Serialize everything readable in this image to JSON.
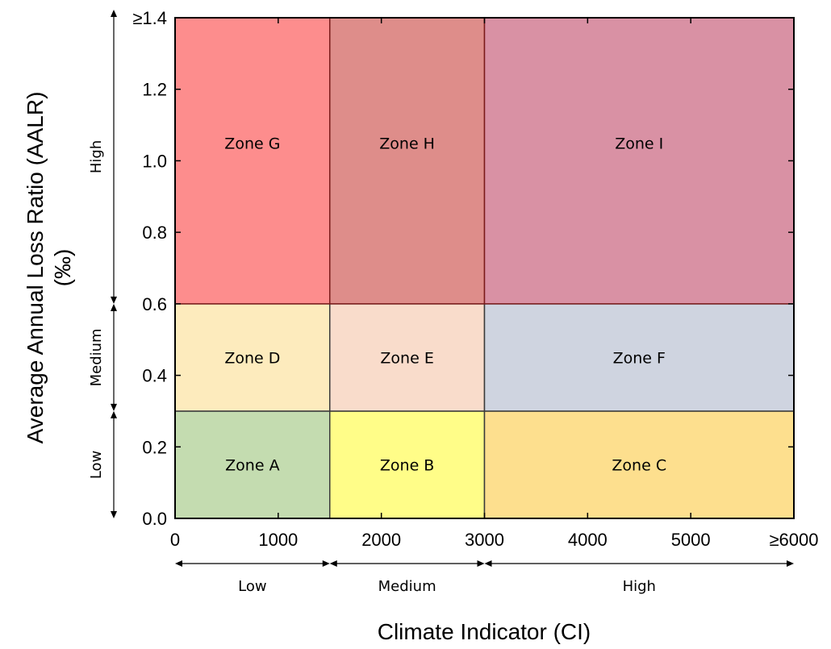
{
  "chart_data": {
    "type": "heatmap",
    "xlabel": "Climate Indicator (CI)",
    "ylabel_line1": "Average Annual Loss Ratio (AALR)",
    "ylabel_line2": "(‰)",
    "xlim": [
      0,
      6000
    ],
    "ylim": [
      0,
      1.4
    ],
    "x_ticks": [
      {
        "value": 0,
        "label": "0"
      },
      {
        "value": 1000,
        "label": "1000"
      },
      {
        "value": 2000,
        "label": "2000"
      },
      {
        "value": 3000,
        "label": "3000"
      },
      {
        "value": 4000,
        "label": "4000"
      },
      {
        "value": 5000,
        "label": "5000"
      },
      {
        "value": 6000,
        "label": "≥6000"
      }
    ],
    "y_ticks": [
      {
        "value": 0.0,
        "label": "0.0"
      },
      {
        "value": 0.2,
        "label": "0.2"
      },
      {
        "value": 0.4,
        "label": "0.4"
      },
      {
        "value": 0.6,
        "label": "0.6"
      },
      {
        "value": 0.8,
        "label": "0.8"
      },
      {
        "value": 1.0,
        "label": "1.0"
      },
      {
        "value": 1.2,
        "label": "1.2"
      },
      {
        "value": 1.4,
        "label": "≥1.4"
      }
    ],
    "x_bands": [
      {
        "label": "Low",
        "from": 0,
        "to": 1500
      },
      {
        "label": "Medium",
        "from": 1500,
        "to": 3000
      },
      {
        "label": "High",
        "from": 3000,
        "to": 6000
      }
    ],
    "y_bands": [
      {
        "label": "Low",
        "from": 0,
        "to": 0.3
      },
      {
        "label": "Medium",
        "from": 0.3,
        "to": 0.6
      },
      {
        "label": "High",
        "from": 0.6,
        "to": 1.4
      }
    ],
    "zones": [
      {
        "name": "Zone A",
        "x": [
          0,
          1500
        ],
        "y": [
          0,
          0.3
        ],
        "color": "#c4dcb0",
        "border": "#3a3a3a"
      },
      {
        "name": "Zone B",
        "x": [
          1500,
          3000
        ],
        "y": [
          0,
          0.3
        ],
        "color": "#fffd88",
        "border": "#3a3a3a"
      },
      {
        "name": "Zone C",
        "x": [
          3000,
          6000
        ],
        "y": [
          0,
          0.3
        ],
        "color": "#fddf8e",
        "border": "#3a3a3a"
      },
      {
        "name": "Zone D",
        "x": [
          0,
          1500
        ],
        "y": [
          0.3,
          0.6
        ],
        "color": "#fdebbd",
        "border": "#3a3a3a"
      },
      {
        "name": "Zone E",
        "x": [
          1500,
          3000
        ],
        "y": [
          0.3,
          0.6
        ],
        "color": "#f9dccb",
        "border": "#3a3a3a"
      },
      {
        "name": "Zone F",
        "x": [
          3000,
          6000
        ],
        "y": [
          0.3,
          0.6
        ],
        "color": "#cfd4e0",
        "border": "#3a3a3a"
      },
      {
        "name": "Zone G",
        "x": [
          0,
          1500
        ],
        "y": [
          0.6,
          1.4
        ],
        "color": "#fd8d8d",
        "border": "#7a1a1a"
      },
      {
        "name": "Zone H",
        "x": [
          1500,
          3000
        ],
        "y": [
          0.6,
          1.4
        ],
        "color": "#de8d8a",
        "border": "#7a1a1a"
      },
      {
        "name": "Zone I",
        "x": [
          3000,
          6000
        ],
        "y": [
          0.6,
          1.4
        ],
        "color": "#d991a4",
        "border": "#7a1a1a"
      }
    ]
  }
}
